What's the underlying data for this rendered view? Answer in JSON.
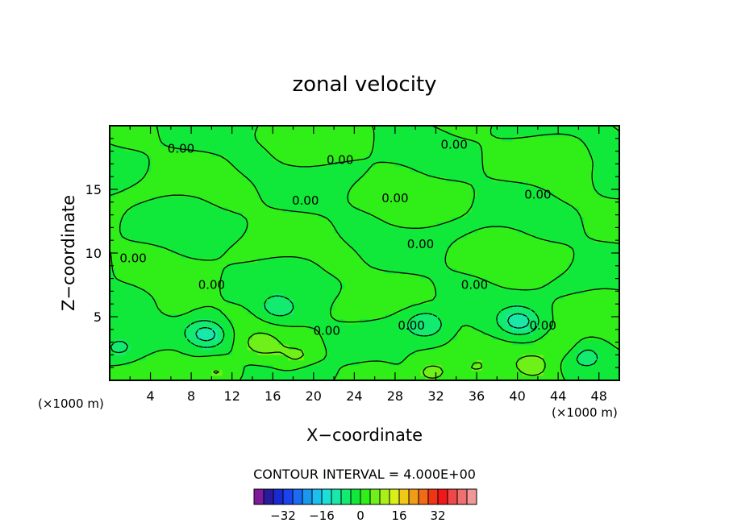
{
  "chart_data": {
    "type": "heatmap",
    "title": "zonal velocity",
    "xlabel": "X−coordinate",
    "ylabel": "Z−coordinate",
    "x_unit_left": "(×1000 m)",
    "x_unit_right": "(×1000 m)",
    "xlim": [
      0,
      50
    ],
    "ylim": [
      0,
      20
    ],
    "x_ticks": [
      4,
      8,
      12,
      16,
      20,
      24,
      28,
      32,
      36,
      40,
      44,
      48
    ],
    "y_ticks": [
      5,
      10,
      15
    ],
    "contour_interval_text": "CONTOUR INTERVAL = 4.000E+00",
    "contour_labels": [
      {
        "text": "0.00",
        "x": 7.0,
        "y": 18.2
      },
      {
        "text": "0.00",
        "x": 22.6,
        "y": 17.3
      },
      {
        "text": "0.00",
        "x": 33.8,
        "y": 18.5
      },
      {
        "text": "0.00",
        "x": 42.0,
        "y": 14.6
      },
      {
        "text": "0.00",
        "x": 28.0,
        "y": 14.3
      },
      {
        "text": "0.00",
        "x": 19.2,
        "y": 14.1
      },
      {
        "text": "0.00",
        "x": 30.5,
        "y": 10.7
      },
      {
        "text": "0.00",
        "x": 2.3,
        "y": 9.6
      },
      {
        "text": "0.00",
        "x": 10.0,
        "y": 7.5
      },
      {
        "text": "0.00",
        "x": 35.8,
        "y": 7.5
      },
      {
        "text": "0.00",
        "x": 21.3,
        "y": 3.9
      },
      {
        "text": "0.00",
        "x": 29.6,
        "y": 4.3
      },
      {
        "text": "0.00",
        "x": 42.5,
        "y": 4.3
      }
    ],
    "features": [
      {
        "x": 9.5,
        "y": 3.6,
        "value": -10
      },
      {
        "x": 16.5,
        "y": 5.7,
        "value": -6
      },
      {
        "x": 31.0,
        "y": 4.4,
        "value": -8
      },
      {
        "x": 40.2,
        "y": 4.6,
        "value": -9
      },
      {
        "x": 0.8,
        "y": 2.5,
        "value": -5
      },
      {
        "x": 46.5,
        "y": 2.0,
        "value": -5
      },
      {
        "x": 14.8,
        "y": 2.8,
        "value": 5
      },
      {
        "x": 18.5,
        "y": 1.8,
        "value": 4
      },
      {
        "x": 10.5,
        "y": 0.6,
        "value": 5
      },
      {
        "x": 31.5,
        "y": 0.6,
        "value": 5
      },
      {
        "x": 41.5,
        "y": 1.1,
        "value": 6
      },
      {
        "x": 44.5,
        "y": 2.6,
        "value": 5
      },
      {
        "x": 36.0,
        "y": 1.0,
        "value": 3
      },
      {
        "x": 20.0,
        "y": 0.4,
        "value": -4
      },
      {
        "x": 6.5,
        "y": 5.5,
        "value": 2
      },
      {
        "x": 26.0,
        "y": 0.5,
        "value": 2
      }
    ],
    "colorbar": {
      "colors": [
        "#7e1a9c",
        "#2a1a9c",
        "#1a2ad0",
        "#1a44ee",
        "#1a6cf2",
        "#1a98f0",
        "#1ac0f0",
        "#1ae0d8",
        "#1ae8a8",
        "#12ea70",
        "#10e83a",
        "#30ee18",
        "#6ef018",
        "#a8f018",
        "#d8f018",
        "#f0c818",
        "#f09c18",
        "#f06a18",
        "#f03418",
        "#f01818",
        "#f04848",
        "#f07070",
        "#f09898"
      ],
      "tick_labels": [
        "−32",
        "−16",
        "0",
        "16",
        "32"
      ],
      "tick_values": [
        -32,
        -16,
        0,
        16,
        32
      ],
      "min": -44,
      "step": 4
    }
  }
}
